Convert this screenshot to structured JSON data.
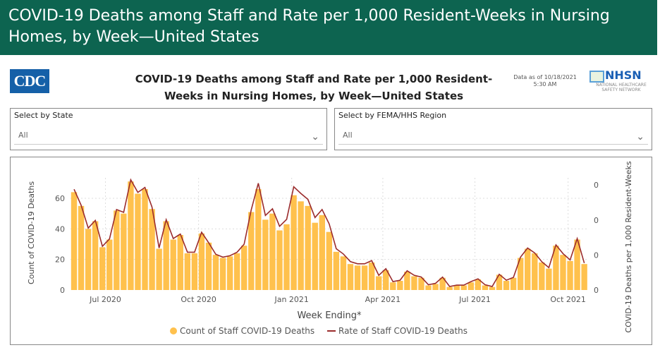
{
  "banner": {
    "title": "COVID-19 Deaths among Staff and Rate per 1,000 Resident-Weeks in Nursing Homes, by Week—United States"
  },
  "header": {
    "logo_left": "CDC",
    "title_line1": "COVID-19 Deaths among Staff and Rate per 1,000 Resident-",
    "title_line2": "Weeks in Nursing Homes, by Week—United States",
    "data_as_of_line1": "Data as of 10/18/2021",
    "data_as_of_line2": "5:30 AM",
    "logo_right": "NHSN",
    "logo_right_sub": "NATIONAL HEALTHCARE SAFETY NETWORK"
  },
  "filters": [
    {
      "label": "Select by State",
      "value": "All"
    },
    {
      "label": "Select by FEMA/HHS Region",
      "value": "All"
    }
  ],
  "colors": {
    "banner": "#0d6450",
    "bars": "#ffc14d",
    "line": "#9b2c2c"
  },
  "chart_data": {
    "type": "bar+line",
    "xlabel": "Week Ending*",
    "ylabel": "Count of COVID-19 Deaths",
    "y2label": "COVID-19 Deaths per 1,000 Resident-Weeks",
    "ylim": [
      0,
      75
    ],
    "yticks": [
      0,
      20,
      40,
      60
    ],
    "y2ticks": [
      0,
      1,
      2,
      3
    ],
    "y2tick_labels": [
      "0",
      "0",
      "0",
      "0"
    ],
    "xtick_labels": [
      {
        "date": "2020-07-01",
        "label": "Jul 2020"
      },
      {
        "date": "2020-10-01",
        "label": "Oct 2020"
      },
      {
        "date": "2021-01-01",
        "label": "Jan 2021"
      },
      {
        "date": "2021-04-01",
        "label": "Apr 2021"
      },
      {
        "date": "2021-07-01",
        "label": "Jul 2021"
      },
      {
        "date": "2021-10-01",
        "label": "Oct 2021"
      }
    ],
    "grid": true,
    "legend_position": "bottom",
    "weeks": [
      "2020-05-31",
      "2020-06-07",
      "2020-06-14",
      "2020-06-21",
      "2020-06-28",
      "2020-07-05",
      "2020-07-12",
      "2020-07-19",
      "2020-07-26",
      "2020-08-02",
      "2020-08-09",
      "2020-08-16",
      "2020-08-23",
      "2020-08-30",
      "2020-09-06",
      "2020-09-13",
      "2020-09-20",
      "2020-09-27",
      "2020-10-04",
      "2020-10-11",
      "2020-10-18",
      "2020-10-25",
      "2020-11-01",
      "2020-11-08",
      "2020-11-15",
      "2020-11-22",
      "2020-11-29",
      "2020-12-06",
      "2020-12-13",
      "2020-12-20",
      "2020-12-27",
      "2021-01-03",
      "2021-01-10",
      "2021-01-17",
      "2021-01-24",
      "2021-01-31",
      "2021-02-07",
      "2021-02-14",
      "2021-02-21",
      "2021-02-28",
      "2021-03-07",
      "2021-03-14",
      "2021-03-21",
      "2021-03-28",
      "2021-04-04",
      "2021-04-11",
      "2021-04-18",
      "2021-04-25",
      "2021-05-02",
      "2021-05-09",
      "2021-05-16",
      "2021-05-23",
      "2021-05-30",
      "2021-06-06",
      "2021-06-13",
      "2021-06-20",
      "2021-06-27",
      "2021-07-04",
      "2021-07-11",
      "2021-07-18",
      "2021-07-25",
      "2021-08-01",
      "2021-08-08",
      "2021-08-15",
      "2021-08-22",
      "2021-08-29",
      "2021-09-05",
      "2021-09-12",
      "2021-09-19",
      "2021-09-26",
      "2021-10-03",
      "2021-10-10",
      "2021-10-17"
    ],
    "series": [
      {
        "name": "Count of Staff COVID-19 Deaths",
        "type": "bar",
        "axis": "left",
        "values": [
          64,
          55,
          40,
          45,
          28,
          33,
          52,
          50,
          71,
          63,
          66,
          53,
          27,
          45,
          33,
          36,
          24,
          24,
          37,
          31,
          23,
          21,
          22,
          24,
          29,
          51,
          66,
          46,
          50,
          39,
          43,
          62,
          58,
          55,
          44,
          49,
          38,
          25,
          22,
          17,
          16,
          16,
          18,
          9,
          13,
          5,
          6,
          12,
          9,
          8,
          3,
          4,
          8,
          2,
          3,
          3,
          5,
          7,
          3,
          2,
          10,
          6,
          8,
          21,
          27,
          24,
          18,
          14,
          29,
          23,
          19,
          33,
          17
        ]
      },
      {
        "name": "Rate of Staff COVID-19 Deaths",
        "type": "line",
        "axis": "right",
        "values": [
          2.88,
          2.42,
          1.77,
          1.99,
          1.25,
          1.46,
          2.3,
          2.22,
          3.15,
          2.79,
          2.93,
          2.37,
          1.2,
          2.01,
          1.47,
          1.6,
          1.08,
          1.08,
          1.65,
          1.35,
          1.02,
          0.94,
          0.98,
          1.08,
          1.31,
          2.29,
          3.05,
          2.13,
          2.32,
          1.82,
          2.02,
          2.95,
          2.76,
          2.59,
          2.07,
          2.3,
          1.89,
          1.18,
          1.03,
          0.81,
          0.75,
          0.75,
          0.84,
          0.42,
          0.61,
          0.24,
          0.28,
          0.55,
          0.42,
          0.37,
          0.15,
          0.19,
          0.37,
          0.1,
          0.14,
          0.14,
          0.24,
          0.32,
          0.15,
          0.1,
          0.45,
          0.28,
          0.36,
          0.94,
          1.2,
          1.06,
          0.81,
          0.64,
          1.29,
          1.04,
          0.86,
          1.47,
          0.77
        ]
      }
    ]
  }
}
